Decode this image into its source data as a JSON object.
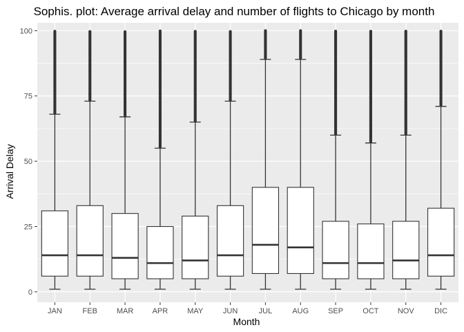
{
  "chart_data": {
    "type": "boxplot",
    "title": "Sophis. plot: Average arrival delay and number of flights to Chicago by month",
    "xlabel": "Month",
    "ylabel": "Arrival Delay",
    "ylim": [
      -4,
      103
    ],
    "yticks": [
      0,
      25,
      50,
      75,
      100
    ],
    "grid": true,
    "categories": [
      "JAN",
      "FEB",
      "MAR",
      "APR",
      "MAY",
      "JUN",
      "JUL",
      "AUG",
      "SEP",
      "OCT",
      "NOV",
      "DIC"
    ],
    "boxes": [
      {
        "min": 1,
        "q1": 6,
        "median": 14,
        "q3": 31,
        "whisker_high": 68,
        "outliers_from": 68,
        "outliers_to": 100
      },
      {
        "min": 1,
        "q1": 6,
        "median": 14,
        "q3": 33,
        "whisker_high": 73,
        "outliers_from": 73,
        "outliers_to": 100
      },
      {
        "min": 1,
        "q1": 5,
        "median": 13,
        "q3": 30,
        "whisker_high": 67,
        "outliers_from": 67,
        "outliers_to": 100
      },
      {
        "min": 1,
        "q1": 5,
        "median": 11,
        "q3": 25,
        "whisker_high": 55,
        "outliers_from": 55,
        "outliers_to": 100
      },
      {
        "min": 1,
        "q1": 5,
        "median": 12,
        "q3": 29,
        "whisker_high": 65,
        "outliers_from": 65,
        "outliers_to": 100
      },
      {
        "min": 1,
        "q1": 6,
        "median": 14,
        "q3": 33,
        "whisker_high": 73,
        "outliers_from": 73,
        "outliers_to": 100
      },
      {
        "min": 1,
        "q1": 7,
        "median": 18,
        "q3": 40,
        "whisker_high": 89,
        "outliers_from": 89,
        "outliers_to": 100
      },
      {
        "min": 1,
        "q1": 7,
        "median": 17,
        "q3": 40,
        "whisker_high": 89,
        "outliers_from": 89,
        "outliers_to": 100
      },
      {
        "min": 1,
        "q1": 5,
        "median": 11,
        "q3": 27,
        "whisker_high": 60,
        "outliers_from": 60,
        "outliers_to": 100
      },
      {
        "min": 1,
        "q1": 5,
        "median": 11,
        "q3": 26,
        "whisker_high": 57,
        "outliers_from": 57,
        "outliers_to": 100
      },
      {
        "min": 1,
        "q1": 5,
        "median": 12,
        "q3": 27,
        "whisker_high": 60,
        "outliers_from": 60,
        "outliers_to": 100
      },
      {
        "min": 1,
        "q1": 6,
        "median": 14,
        "q3": 32,
        "whisker_high": 71,
        "outliers_from": 71,
        "outliers_to": 100
      }
    ],
    "colors": {
      "panel_background": "#ebebeb",
      "grid_major": "#ffffff",
      "box_fill": "#ffffff",
      "box_stroke": "#333333",
      "outlier": "#333333"
    }
  }
}
